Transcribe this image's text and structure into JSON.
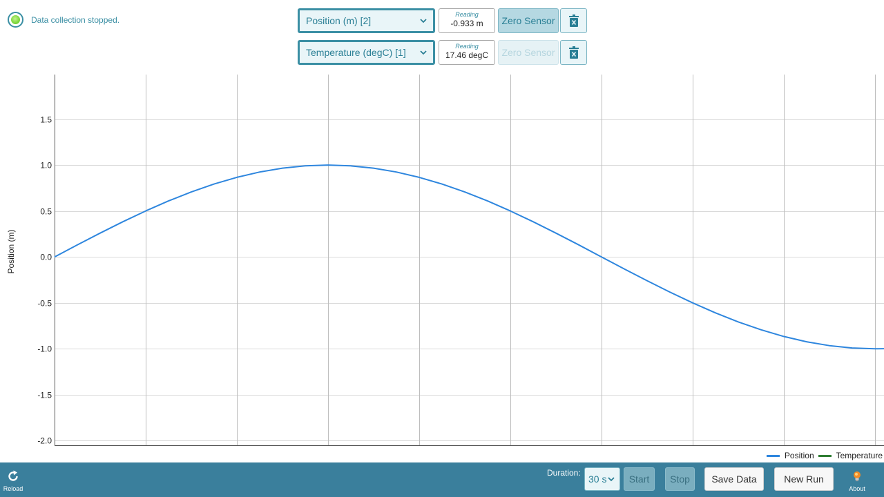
{
  "status": {
    "text": "Data collection stopped.",
    "indicator_color": "#6fd12e"
  },
  "sensors": [
    {
      "select_value": "Position (m) [2]",
      "reading_label": "Reading",
      "reading_value": "-0.933 m",
      "zero_label": "Zero Sensor",
      "zero_enabled": true
    },
    {
      "select_value": "Temperature (degC) [1]",
      "reading_label": "Reading",
      "reading_value": "17.46 degC",
      "zero_label": "Zero Sensor",
      "zero_enabled": false
    }
  ],
  "chart_data": {
    "type": "line",
    "ylabel": "Position (m)",
    "ylim": [
      -2.0,
      2.0
    ],
    "yticks": [
      1.5,
      1.0,
      0.5,
      0.0,
      -0.5,
      -1.0,
      -1.5,
      -2.0
    ],
    "ytick_labels": [
      "1.5",
      "1.0",
      "0.5",
      "0.0",
      "-0.5",
      "-1.0",
      "-1.5",
      "-2.0"
    ],
    "xlim": [
      0,
      9.1
    ],
    "xgrid": [
      1,
      2,
      3,
      4,
      5,
      6,
      7,
      8,
      9
    ],
    "grid": true,
    "legend_position": "bottom-right",
    "series": [
      {
        "name": "Position",
        "color": "#2e86de",
        "x": [
          0,
          0.25,
          0.5,
          0.75,
          1,
          1.25,
          1.5,
          1.75,
          2,
          2.25,
          2.5,
          2.75,
          3,
          3.25,
          3.5,
          3.75,
          4,
          4.25,
          4.5,
          4.75,
          5,
          5.25,
          5.5,
          5.75,
          6,
          6.25,
          6.5,
          6.75,
          7,
          7.25,
          7.5,
          7.75,
          8,
          8.25,
          8.5,
          8.75,
          9,
          9.1
        ],
        "values": [
          0,
          0.131,
          0.259,
          0.383,
          0.5,
          0.609,
          0.707,
          0.793,
          0.866,
          0.924,
          0.966,
          0.991,
          1,
          0.991,
          0.966,
          0.924,
          0.866,
          0.793,
          0.707,
          0.609,
          0.5,
          0.383,
          0.259,
          0.131,
          0,
          -0.131,
          -0.259,
          -0.383,
          -0.5,
          -0.609,
          -0.707,
          -0.793,
          -0.866,
          -0.924,
          -0.966,
          -0.991,
          -1,
          -0.999
        ]
      },
      {
        "name": "Temperature",
        "color": "#2e7d32",
        "x": [],
        "values": []
      }
    ]
  },
  "legend": [
    {
      "label": "Position",
      "color": "#2e86de"
    },
    {
      "label": "Temperature",
      "color": "#2e7d32"
    }
  ],
  "bottom_bar": {
    "reload_label": "Reload",
    "duration_label": "Duration:",
    "duration_value": "30 s",
    "start_label": "Start",
    "stop_label": "Stop",
    "save_label": "Save Data",
    "new_run_label": "New Run",
    "about_label": "About"
  },
  "icons": {
    "status": "status-indicator-icon",
    "select": "chevron-down-icon",
    "delete": "trash-icon",
    "reload": "reload-icon",
    "about": "lightbulb-icon"
  }
}
